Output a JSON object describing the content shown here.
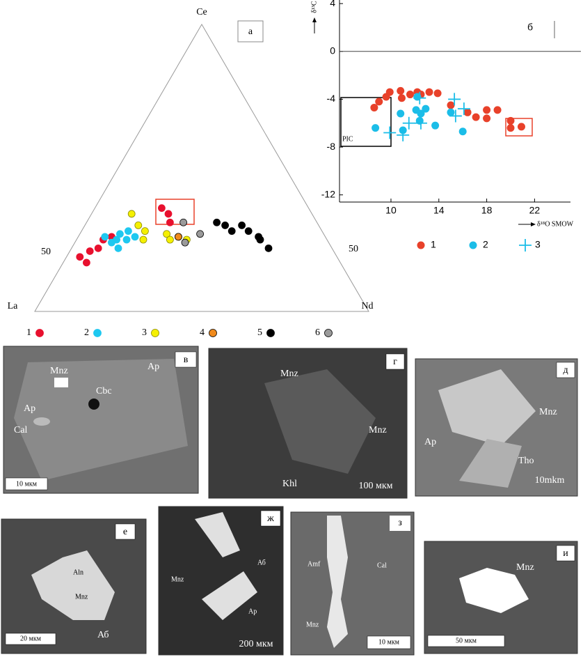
{
  "chart_data": [
    {
      "type": "ternary",
      "panel": "а",
      "corners": {
        "top": "Ce",
        "left": "La",
        "right": "Nd"
      },
      "side_labels": [
        "50",
        "50"
      ],
      "series": [
        {
          "name": "1",
          "color": "#e8102e",
          "edge": "#e8102e",
          "la": [
            77,
            73,
            70,
            76,
            67,
            64,
            44,
            43,
            44
          ],
          "ce": [
            19,
            21,
            22,
            17,
            25,
            26,
            36,
            34,
            31
          ],
          "nd": [
            4,
            6,
            8,
            7,
            8,
            10,
            20,
            23,
            25
          ]
        },
        {
          "name": "2",
          "color": "#1ec8f0",
          "edge": "#1ec8f0",
          "la": [
            66,
            63,
            61,
            58,
            57,
            65,
            60,
            64
          ],
          "ce": [
            26,
            25,
            27,
            28,
            26,
            24,
            25,
            22
          ],
          "nd": [
            8,
            12,
            12,
            14,
            17,
            11,
            15,
            14
          ]
        },
        {
          "name": "3",
          "color": "#f5f000",
          "edge": "#8a8a00",
          "la": [
            54,
            54,
            53,
            47,
            44,
            42,
            47,
            55
          ],
          "ce": [
            34,
            30,
            28,
            27,
            26,
            25,
            25,
            25
          ],
          "nd": [
            12,
            16,
            19,
            26,
            30,
            33,
            28,
            20
          ]
        },
        {
          "name": "4",
          "color": "#f08a1c",
          "edge": "#000000",
          "la": [
            44
          ],
          "ce": [
            26
          ],
          "nd": [
            30
          ]
        },
        {
          "name": "5",
          "color": "#000000",
          "edge": "#000000",
          "la": [
            30,
            28,
            27,
            23,
            22,
            20,
            20,
            19
          ],
          "ce": [
            31,
            30,
            28,
            30,
            28,
            26,
            25,
            22
          ],
          "nd": [
            39,
            42,
            45,
            47,
            50,
            54,
            55,
            59
          ]
        },
        {
          "name": "6",
          "color": "#9a9a9a",
          "edge": "#000000",
          "la": [
            40,
            37,
            43
          ],
          "ce": [
            31,
            27,
            24
          ],
          "nd": [
            29,
            36,
            33
          ]
        }
      ]
    },
    {
      "type": "scatter",
      "panel": "б",
      "x_label": "δ¹⁸O SMOW",
      "y_label": "δ¹³C",
      "box_label": "PIC",
      "xlim": [
        5.7,
        25
      ],
      "ylim": [
        -12.6,
        4.3
      ],
      "xticks": [
        10,
        14,
        18,
        22
      ],
      "yticks": [
        4,
        0,
        -4,
        -8,
        -12
      ],
      "series": [
        {
          "name": "1",
          "color": "#e8412a",
          "marker": "circle",
          "x": [
            8.6,
            9.0,
            9.6,
            9.9,
            10.8,
            11.6,
            10.9,
            12.2,
            12.5,
            13.2,
            13.9,
            15.0,
            16.4,
            17.1,
            18.0,
            18.9,
            18.0,
            20.0,
            20.0,
            20.9
          ],
          "values": [
            -4.7,
            -4.2,
            -3.8,
            -3.4,
            -3.3,
            -3.6,
            -3.9,
            -3.4,
            -3.6,
            -3.4,
            -3.5,
            -4.5,
            -5.1,
            -5.5,
            -5.6,
            -4.9,
            -4.9,
            -5.8,
            -6.4,
            -6.3
          ]
        },
        {
          "name": "2",
          "color": "#1bbde8",
          "marker": "circle",
          "x": [
            8.7,
            10.8,
            11.0,
            12.1,
            12.5,
            12.9,
            12.4,
            13.7,
            15.0,
            16.0,
            12.2
          ],
          "values": [
            -6.4,
            -5.2,
            -6.6,
            -4.9,
            -5.2,
            -4.8,
            -5.8,
            -6.2,
            -5.1,
            -6.7,
            -3.8
          ]
        },
        {
          "name": "3",
          "color": "#1bbde8",
          "marker": "cross",
          "x": [
            9.9,
            11.0,
            11.5,
            12.5,
            15.3,
            16.1,
            15.4,
            12.4
          ],
          "values": [
            -6.8,
            -7.0,
            -6.0,
            -6.0,
            -4.0,
            -4.8,
            -5.4,
            -3.9
          ]
        }
      ]
    }
  ],
  "panels": [
    {
      "letter": "в",
      "labels": [
        "Ap",
        "Ap",
        "Mnz",
        "Cbc",
        "Cal"
      ],
      "scale": "10 мкм"
    },
    {
      "letter": "г",
      "labels": [
        "Mnz",
        "Mnz",
        "Khl"
      ],
      "scale": "100 мкм"
    },
    {
      "letter": "д",
      "labels": [
        "Mnz",
        "Ap",
        "Tho"
      ],
      "scale": "10mkm"
    },
    {
      "letter": "е",
      "labels": [
        "Aln",
        "Mnz",
        "Аб"
      ],
      "scale": "20 мкм"
    },
    {
      "letter": "ж",
      "labels": [
        "Аб",
        "Mnz",
        "Ap"
      ],
      "scale": "200 мкм"
    },
    {
      "letter": "з",
      "labels": [
        "Amf",
        "Cal",
        "Mnz"
      ],
      "scale": "10 мкм"
    },
    {
      "letter": "и",
      "labels": [
        "Mnz"
      ],
      "scale": "50 мкм"
    }
  ]
}
